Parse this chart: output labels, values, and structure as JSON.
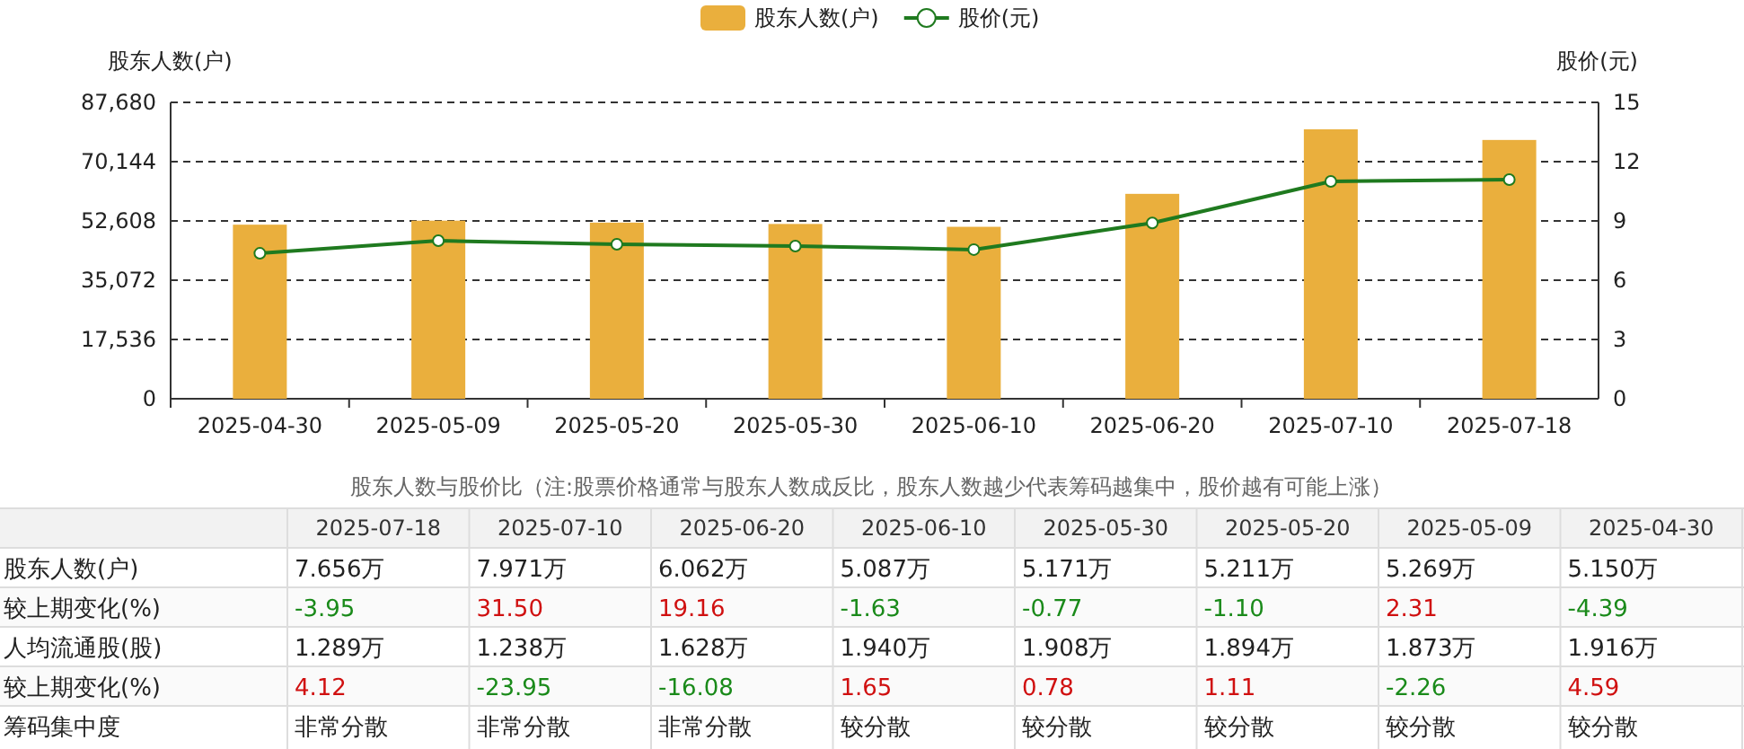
{
  "chart_data": {
    "type": "bar",
    "categories": [
      "2025-04-30",
      "2025-05-09",
      "2025-05-20",
      "2025-05-30",
      "2025-06-10",
      "2025-06-20",
      "2025-07-10",
      "2025-07-18"
    ],
    "series": [
      {
        "name": "股东人数(户)",
        "color": "#eaaf3d",
        "values": [
          51500,
          52690,
          52110,
          51710,
          50870,
          60620,
          79710,
          76560
        ]
      },
      {
        "name": "股价(元)",
        "type": "line",
        "axis": "y2",
        "color": "#1f7a1f",
        "marker": "circle",
        "values": [
          7.36,
          8.0,
          7.82,
          7.73,
          7.55,
          8.9,
          11.0,
          11.09
        ]
      }
    ],
    "ylabel": "股东人数(户)",
    "y2label": "股价(元)",
    "ylim": [
      0,
      87680
    ],
    "yticks": [
      0,
      {
        "value": 17536,
        "label": "17,536"
      },
      {
        "value": 35072,
        "label": "35,072"
      },
      {
        "value": 52608,
        "label": "52,608"
      },
      {
        "value": 70144,
        "label": "70,144"
      },
      {
        "value": 87680,
        "label": "87,680"
      }
    ],
    "y2lim": [
      0,
      15
    ],
    "y2ticks": [
      0,
      3,
      6,
      9,
      12,
      15
    ],
    "grid": "y",
    "legend": "top",
    "annotations": [
      "股东人数与股价比（注:股票价格通常与股东人数成反比，股东人数越少代表筹码越集中，股价越有可能上涨）",
      "股东人数(户)",
      "7.656万",
      "7.971万",
      "6.062万",
      "5.087万",
      "5.171万",
      "5.211万",
      "5.269万",
      "5.150万",
      "较上期变化(%)",
      "-3.95",
      "31.50",
      "19.16",
      "-1.63",
      "-0.77",
      "-1.10",
      "2.31",
      "-4.39",
      "人均流通股(股)",
      "1.289万",
      "1.238万",
      "1.628万",
      "1.940万",
      "1.908万",
      "1.894万",
      "1.873万",
      "1.916万",
      "较上期变化(%)",
      "4.12",
      "-23.95",
      "-16.08",
      "1.65",
      "0.78",
      "1.11",
      "-2.26",
      "4.59",
      "筹码集中度",
      "非常分散",
      "非常分散",
      "非常分散",
      "较分散",
      "较分散",
      "较分散",
      "较分散",
      "较分散"
    ]
  }
}
